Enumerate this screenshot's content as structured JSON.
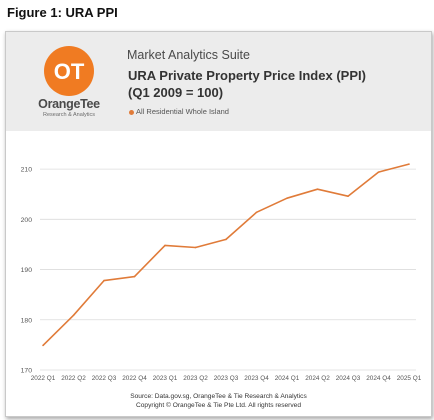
{
  "figure_title": "Figure 1: URA PPI",
  "header": {
    "suite": "Market Analytics Suite",
    "title_line1": "URA Private Property Price Index (PPI)",
    "title_line2": "(Q1 2009 = 100)",
    "legend_label": "All Residential Whole Island",
    "brand_name": "OrangeTee",
    "brand_sub": "Research & Analytics",
    "logo_text": "OT"
  },
  "footer": {
    "source": "Source: Data.gov.sg, OrangeTee & Tie Research & Analytics",
    "copyright": "Copyright © OrangeTee & Tie Pte Ltd. All rights reserved"
  },
  "colors": {
    "line": "#e07b39",
    "brand": "#f07b22",
    "header_bg": "#ececec",
    "grid": "#dcdcdc"
  },
  "chart_data": {
    "type": "line",
    "categories": [
      "2022 Q1",
      "2022 Q2",
      "2022 Q3",
      "2022 Q4",
      "2023 Q1",
      "2023 Q2",
      "2023 Q3",
      "2023 Q4",
      "2024 Q1",
      "2024 Q2",
      "2024 Q3",
      "2024 Q4",
      "2025 Q1"
    ],
    "series": [
      {
        "name": "All Residential Whole Island",
        "values": [
          174.9,
          180.9,
          187.8,
          188.6,
          194.8,
          194.4,
          196.0,
          201.4,
          204.2,
          206.0,
          204.6,
          209.4,
          211.0
        ]
      }
    ],
    "ylim": [
      170,
      215
    ],
    "yticks": [
      170,
      180,
      190,
      200,
      210
    ],
    "grid": true,
    "legend": "top-left"
  }
}
